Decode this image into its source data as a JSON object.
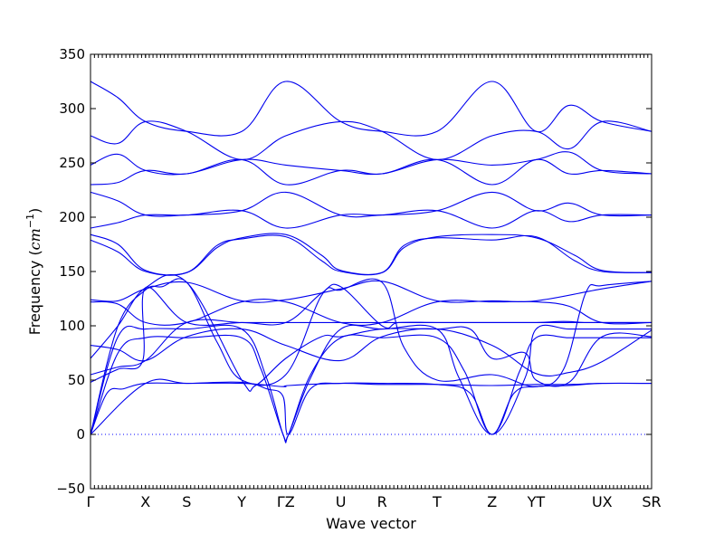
{
  "chart_data": {
    "type": "line",
    "xlabel": "Wave vector",
    "ylabel_prefix": "Frequency (",
    "ylabel_unit_base": "cm",
    "ylabel_unit_exp": "−1",
    "ylabel_suffix": ")",
    "ylim": [
      -50,
      350
    ],
    "yticks": [
      -50,
      0,
      50,
      100,
      150,
      200,
      250,
      300,
      350
    ],
    "grid": false,
    "reference_line_y": 0,
    "colors": {
      "bands": "#0000ee",
      "reference": "#0000ff"
    },
    "high_symmetry_points": [
      {
        "label": "Γ",
        "x": 0
      },
      {
        "label": "X",
        "x": 1
      },
      {
        "label": "S",
        "x": 1.75
      },
      {
        "label": "Y",
        "x": 2.75
      },
      {
        "label": "ΓZ",
        "x": 3.55
      },
      {
        "label": "U",
        "x": 4.55
      },
      {
        "label": "R",
        "x": 5.3
      },
      {
        "label": "T",
        "x": 6.3
      },
      {
        "label": "Z",
        "x": 7.3
      },
      {
        "label": "YT",
        "x": 8.1
      },
      {
        "label": "UX",
        "x": 9.3
      },
      {
        "label": "SR",
        "x": 10.2
      }
    ],
    "xlim": [
      0,
      10.2
    ],
    "series": [
      {
        "x": [
          0,
          1,
          1.75,
          2.75,
          3.5,
          3.6,
          4.55,
          5.3,
          6.3,
          7.3,
          8.1,
          8.7,
          9.3,
          10.2
        ],
        "y": [
          0,
          47,
          47,
          47,
          44,
          45,
          47,
          46,
          46,
          45,
          46,
          46,
          47,
          47
        ]
      },
      {
        "x": [
          0,
          0.3,
          0.6,
          1,
          1.75,
          2.75,
          3.2,
          3.5,
          3.6,
          4.0,
          4.55,
          5.3,
          6.3,
          6.9,
          7.3,
          7.7,
          8.1,
          8.7,
          9.3,
          10.2
        ],
        "y": [
          0,
          38,
          42,
          47,
          47,
          48,
          42,
          35,
          0,
          42,
          47,
          47,
          46,
          38,
          0,
          38,
          44,
          45,
          47,
          47
        ]
      },
      {
        "x": [
          0,
          0.5,
          1,
          1.75,
          2.75,
          3.1,
          3.5,
          3.6,
          4.0,
          4.55,
          5.3,
          6.3,
          6.8,
          7.3,
          7.8,
          8.1,
          8.7,
          9.3,
          10.2
        ],
        "y": [
          0,
          75,
          89,
          89,
          89,
          60,
          0,
          0,
          55,
          89,
          89,
          89,
          58,
          0,
          58,
          89,
          89,
          89,
          89
        ]
      },
      {
        "x": [
          0,
          0.5,
          1,
          1.75,
          2.75,
          3.2,
          3.5,
          3.6,
          4.0,
          4.55,
          5.3,
          6.3,
          6.7,
          7.3,
          7.9,
          8.1,
          8.7,
          9.3,
          10.2
        ],
        "y": [
          0,
          90,
          97,
          97,
          97,
          52,
          0,
          0,
          52,
          97,
          97,
          97,
          52,
          0,
          52,
          97,
          97,
          97,
          97
        ]
      },
      {
        "x": [
          0,
          0.5,
          1,
          1.3,
          1.75,
          2.3,
          2.75,
          3.55,
          4.2,
          4.55,
          5.3,
          5.7,
          6.3,
          7.3,
          8.1,
          8.6,
          9.0,
          9.3,
          10.2
        ],
        "y": [
          0,
          100,
          133,
          136,
          140,
          85,
          50,
          55,
          128,
          133,
          140,
          80,
          50,
          55,
          44,
          60,
          130,
          137,
          141
        ]
      },
      {
        "x": [
          0,
          0.5,
          0.95,
          1,
          1.75,
          2.75,
          3.55,
          4.2,
          4.55,
          5.3,
          5.6,
          6.3,
          7.3,
          8.1,
          8.6,
          9.0,
          9.3,
          10.2
        ],
        "y": [
          48,
          60,
          68,
          135,
          103,
          103,
          103,
          130,
          136,
          100,
          103,
          103,
          103,
          103,
          104,
          103,
          103,
          103
        ]
      },
      {
        "x": [
          0,
          0.5,
          1,
          1.75,
          2.75,
          3.55,
          4.55,
          5.3,
          6.3,
          7.3,
          8.1,
          9.3,
          10.2
        ],
        "y": [
          55,
          62,
          68,
          103,
          103,
          103,
          103,
          103,
          103,
          103,
          103,
          103,
          103
        ]
      },
      {
        "x": [
          0,
          0.5,
          1,
          1.75,
          2.75,
          3.55,
          4.55,
          5.3,
          6.3,
          7.3,
          8.1,
          8.7,
          9.3,
          10.2
        ],
        "y": [
          82,
          78,
          68,
          90,
          97,
          82,
          68,
          90,
          97,
          82,
          56,
          57,
          67,
          96
        ]
      },
      {
        "x": [
          0,
          0.5,
          1,
          1.75,
          2.75,
          3.0,
          3.55,
          4.2,
          4.55,
          5.3,
          6.3,
          6.9,
          7.3,
          7.9,
          8.1,
          8.7,
          9.3,
          10.2
        ],
        "y": [
          70,
          100,
          135,
          140,
          50,
          45,
          70,
          90,
          90,
          97,
          97,
          97,
          70,
          75,
          50,
          48,
          90,
          90
        ]
      },
      {
        "x": [
          0,
          0.5,
          1,
          1.75,
          2.75,
          3.55,
          4.55,
          5.3,
          6.3,
          7.3,
          8.1,
          8.7,
          9.3,
          10.2
        ],
        "y": [
          122,
          120,
          103,
          103,
          122,
          122,
          103,
          103,
          122,
          122,
          122,
          118,
          103,
          103
        ]
      },
      {
        "x": [
          0,
          0.5,
          1,
          1.75,
          2.75,
          3.55,
          4.55,
          5.3,
          6.3,
          7.3,
          8.1,
          9.3,
          10.2
        ],
        "y": [
          124,
          123,
          134,
          140,
          123,
          124,
          134,
          141,
          123,
          123,
          123,
          134,
          141
        ]
      },
      {
        "x": [
          0,
          0.5,
          1,
          1.75,
          2.3,
          2.75,
          3.55,
          4.2,
          4.55,
          5.3,
          5.7,
          6.3,
          7.3,
          8.1,
          8.8,
          9.3,
          10.2
        ],
        "y": [
          184,
          175,
          151,
          149,
          172,
          181,
          184,
          165,
          151,
          149,
          172,
          182,
          184,
          181,
          165,
          151,
          149
        ]
      },
      {
        "x": [
          0,
          0.5,
          1,
          1.75,
          2.3,
          2.75,
          3.55,
          4.2,
          4.55,
          5.3,
          5.7,
          6.3,
          7.3,
          8.1,
          8.8,
          9.3,
          10.2
        ],
        "y": [
          179,
          168,
          150,
          149,
          174,
          180,
          182,
          160,
          150,
          149,
          174,
          181,
          179,
          182,
          160,
          150,
          149
        ]
      },
      {
        "x": [
          0,
          0.5,
          1,
          1.75,
          2.75,
          3.55,
          4.55,
          5.3,
          6.3,
          7.3,
          8.1,
          8.7,
          9.3,
          10.2
        ],
        "y": [
          190,
          195,
          202,
          202,
          206,
          190,
          202,
          202,
          206,
          190,
          206,
          196,
          202,
          202
        ]
      },
      {
        "x": [
          0,
          0.5,
          1,
          1.75,
          2.75,
          3.55,
          4.55,
          5.3,
          6.3,
          7.3,
          8.1,
          8.7,
          9.3,
          10.2
        ],
        "y": [
          223,
          215,
          202,
          202,
          206,
          223,
          202,
          202,
          206,
          223,
          206,
          213,
          202,
          202
        ]
      },
      {
        "x": [
          0,
          0.5,
          1,
          1.75,
          2.75,
          3.55,
          4.55,
          5.3,
          6.3,
          7.3,
          8.1,
          8.7,
          9.3,
          10.2
        ],
        "y": [
          230,
          232,
          243,
          240,
          253,
          230,
          243,
          240,
          253,
          230,
          253,
          240,
          243,
          240
        ]
      },
      {
        "x": [
          0,
          0.5,
          1,
          1.75,
          2.75,
          3.55,
          4.55,
          5.3,
          6.3,
          7.3,
          8.1,
          8.7,
          9.3,
          10.2
        ],
        "y": [
          248,
          258,
          243,
          240,
          253,
          248,
          243,
          240,
          253,
          248,
          253,
          260,
          243,
          240
        ]
      },
      {
        "x": [
          0,
          0.5,
          1,
          1.75,
          2.75,
          3.55,
          4.55,
          5.3,
          6.3,
          7.3,
          8.1,
          8.7,
          9.3,
          10.2
        ],
        "y": [
          275,
          268,
          288,
          279,
          253,
          275,
          288,
          279,
          253,
          275,
          279,
          263,
          288,
          279
        ]
      },
      {
        "x": [
          0,
          0.5,
          1,
          1.75,
          2.75,
          3.55,
          4.55,
          5.3,
          6.3,
          7.3,
          8.1,
          8.7,
          9.3,
          10.2
        ],
        "y": [
          325,
          310,
          288,
          279,
          279,
          325,
          288,
          279,
          279,
          325,
          279,
          303,
          288,
          279
        ]
      }
    ]
  }
}
